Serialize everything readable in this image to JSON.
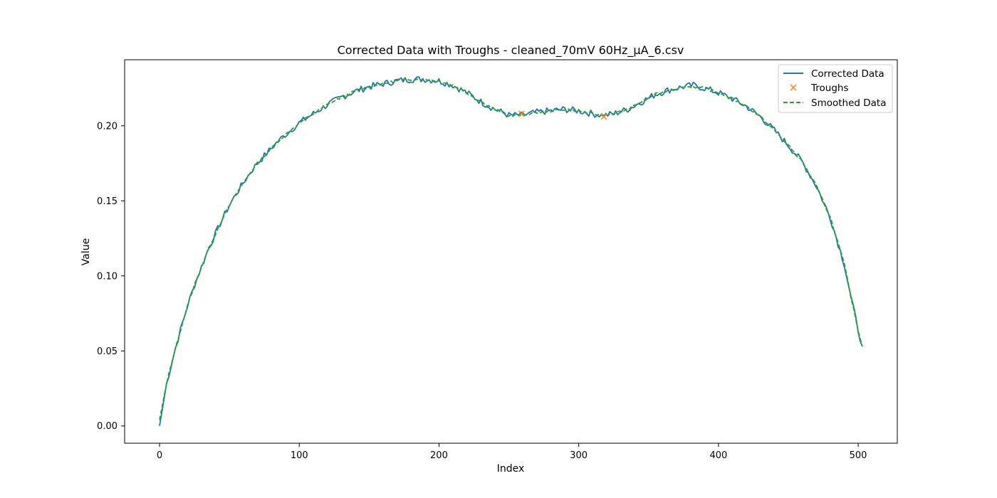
{
  "chart_data": {
    "type": "line",
    "title": "Corrected Data with Troughs - cleaned_70mV 60Hz_µA_6.csv",
    "xlabel": "Index",
    "ylabel": "Value",
    "xlim": [
      -25,
      528
    ],
    "ylim": [
      -0.0115,
      0.244
    ],
    "xticks": [
      0,
      100,
      200,
      300,
      400,
      500
    ],
    "yticks": [
      0.0,
      0.05,
      0.1,
      0.15,
      0.2
    ],
    "ytick_labels": [
      "0.00",
      "0.05",
      "0.10",
      "0.15",
      "0.20"
    ],
    "grid": false,
    "legend_position": "top-right",
    "colors": {
      "corrected": "#1f77b4",
      "troughs": "#ff7f0e",
      "smoothed": "#2ca02c"
    },
    "series": [
      {
        "name": "Corrected Data",
        "style": "solid",
        "x": [
          0,
          5,
          10,
          15,
          20,
          25,
          30,
          35,
          40,
          45,
          50,
          55,
          60,
          65,
          70,
          75,
          80,
          85,
          90,
          95,
          100,
          110,
          120,
          130,
          140,
          150,
          160,
          170,
          180,
          190,
          200,
          210,
          220,
          230,
          240,
          250,
          260,
          270,
          280,
          290,
          300,
          310,
          318,
          325,
          335,
          345,
          355,
          365,
          375,
          382,
          390,
          400,
          410,
          420,
          430,
          440,
          450,
          460,
          470,
          480,
          490,
          495,
          500,
          503
        ],
        "y": [
          0.0,
          0.028,
          0.047,
          0.064,
          0.08,
          0.094,
          0.106,
          0.118,
          0.128,
          0.138,
          0.147,
          0.155,
          0.162,
          0.169,
          0.175,
          0.18,
          0.185,
          0.19,
          0.194,
          0.198,
          0.202,
          0.208,
          0.214,
          0.219,
          0.223,
          0.226,
          0.228,
          0.23,
          0.231,
          0.231,
          0.23,
          0.227,
          0.222,
          0.216,
          0.211,
          0.207,
          0.207,
          0.209,
          0.21,
          0.211,
          0.21,
          0.208,
          0.207,
          0.208,
          0.211,
          0.216,
          0.221,
          0.224,
          0.226,
          0.227,
          0.225,
          0.222,
          0.218,
          0.213,
          0.206,
          0.197,
          0.187,
          0.176,
          0.16,
          0.139,
          0.108,
          0.085,
          0.064,
          0.053
        ]
      },
      {
        "name": "Troughs",
        "style": "markers-x",
        "x": [
          259,
          318
        ],
        "y": [
          0.208,
          0.206
        ]
      },
      {
        "name": "Smoothed Data",
        "style": "dashed",
        "x": [
          0,
          5,
          10,
          15,
          20,
          25,
          30,
          35,
          40,
          45,
          50,
          55,
          60,
          65,
          70,
          75,
          80,
          85,
          90,
          95,
          100,
          110,
          120,
          130,
          140,
          150,
          160,
          170,
          180,
          190,
          200,
          210,
          220,
          230,
          240,
          250,
          260,
          270,
          280,
          290,
          300,
          310,
          318,
          325,
          335,
          345,
          355,
          365,
          375,
          382,
          390,
          400,
          410,
          420,
          430,
          440,
          450,
          460,
          470,
          480,
          490,
          495,
          500,
          503
        ],
        "y": [
          0.004,
          0.028,
          0.047,
          0.064,
          0.08,
          0.094,
          0.106,
          0.118,
          0.128,
          0.138,
          0.147,
          0.155,
          0.162,
          0.169,
          0.175,
          0.18,
          0.185,
          0.19,
          0.194,
          0.198,
          0.202,
          0.208,
          0.214,
          0.219,
          0.223,
          0.226,
          0.228,
          0.23,
          0.231,
          0.231,
          0.23,
          0.227,
          0.222,
          0.216,
          0.211,
          0.207,
          0.207,
          0.209,
          0.21,
          0.211,
          0.21,
          0.208,
          0.207,
          0.208,
          0.211,
          0.216,
          0.221,
          0.224,
          0.226,
          0.226,
          0.225,
          0.222,
          0.218,
          0.213,
          0.206,
          0.197,
          0.187,
          0.176,
          0.16,
          0.139,
          0.108,
          0.085,
          0.064,
          0.053
        ]
      }
    ]
  }
}
